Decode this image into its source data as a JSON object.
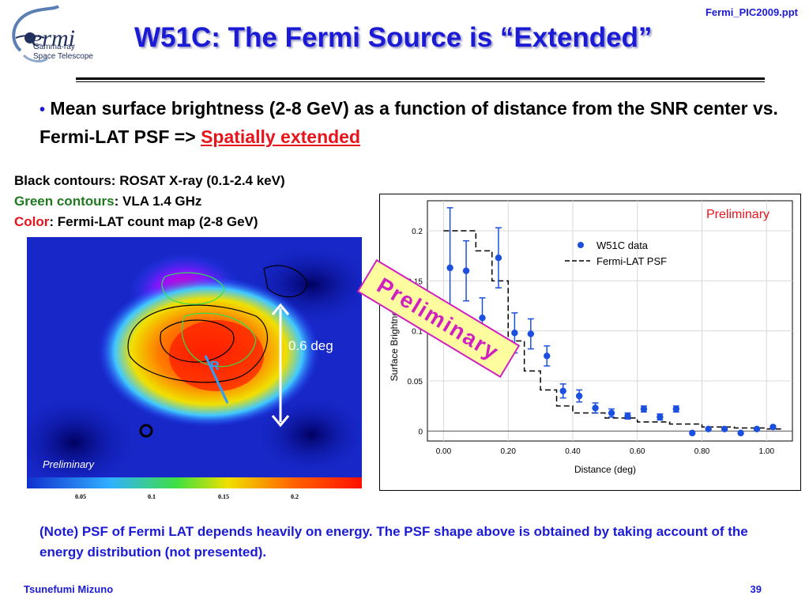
{
  "header": {
    "logo_word": "ermi",
    "logo_line1": "Gamma-ray",
    "logo_line2": "Space Telescope",
    "filename": "Fermi_PIC2009.ppt",
    "title": "W51C: The Fermi Source is “Extended”"
  },
  "bullet": {
    "text": "Mean surface brightness (2-8 GeV) as a function of distance from the SNR center vs. Fermi-LAT PSF  => ",
    "highlight": "Spatially extended"
  },
  "map_legend": {
    "black_line": "Black contours: ROSAT X-ray (0.1-2.4 keV)",
    "green_label": "Green contours",
    "green_rest": ": VLA 1.4 GHz",
    "color_label": "Color",
    "color_rest": ": Fermi-LAT count map (2-8 GeV)"
  },
  "map": {
    "preliminary": "Preliminary",
    "scale_label": "0.6 deg",
    "radius_label": "R",
    "colorbar_ticks": [
      "0.05",
      "0.1",
      "0.15",
      "0.2"
    ]
  },
  "stamp": "Preliminary",
  "chart_data": {
    "type": "scatter",
    "annotation": "Preliminary",
    "xlabel": "Distance (deg)",
    "ylabel": "Surface Brightness (a.u.)",
    "xlim": [
      -0.05,
      1.08
    ],
    "ylim": [
      -0.01,
      0.23
    ],
    "x_ticks": [
      "0.00",
      "0.20",
      "0.40",
      "0.60",
      "0.80",
      "1.00"
    ],
    "x_tick_values": [
      0,
      0.2,
      0.4,
      0.6,
      0.8,
      1.0
    ],
    "y_ticks": [
      "0",
      "0.05",
      "0.1",
      "0.15",
      "0.2"
    ],
    "y_tick_values": [
      0,
      0.05,
      0.1,
      0.15,
      0.2
    ],
    "legend": {
      "placement": "top-right",
      "data": "W51C data",
      "psf": "Fermi-LAT PSF"
    },
    "series": [
      {
        "name": "W51C data",
        "x": [
          0.02,
          0.07,
          0.12,
          0.17,
          0.22,
          0.27,
          0.32,
          0.37,
          0.42,
          0.47,
          0.52,
          0.57,
          0.62,
          0.67,
          0.72,
          0.77,
          0.82,
          0.87,
          0.92,
          0.97,
          1.02
        ],
        "y": [
          0.163,
          0.16,
          0.113,
          0.173,
          0.098,
          0.097,
          0.075,
          0.04,
          0.035,
          0.023,
          0.018,
          0.015,
          0.022,
          0.014,
          0.022,
          -0.002,
          0.002,
          0.002,
          -0.002,
          0.002,
          0.004
        ],
        "err": [
          0.06,
          0.03,
          0.02,
          0.03,
          0.02,
          0.015,
          0.01,
          0.007,
          0.006,
          0.005,
          0.004,
          0.003,
          0.003,
          0.003,
          0.003,
          0.002,
          0.002,
          0.002,
          0.002,
          0.002,
          0.002
        ]
      },
      {
        "name": "Fermi-LAT PSF",
        "steps_x": [
          0.0,
          0.05,
          0.1,
          0.15,
          0.2,
          0.25,
          0.3,
          0.35,
          0.4,
          0.5,
          0.6,
          0.7,
          0.8,
          0.9,
          1.0,
          1.05
        ],
        "steps_y": [
          0.2,
          0.2,
          0.18,
          0.15,
          0.09,
          0.06,
          0.041,
          0.025,
          0.018,
          0.013,
          0.009,
          0.007,
          0.004,
          0.003,
          0.002,
          0.002
        ]
      }
    ]
  },
  "note": "(Note) PSF of Fermi LAT depends heavily on energy. The PSF shape above is obtained by taking account of the energy distribution (not presented).",
  "footer": {
    "author": "Tsunefumi Mizuno",
    "page": "39"
  }
}
